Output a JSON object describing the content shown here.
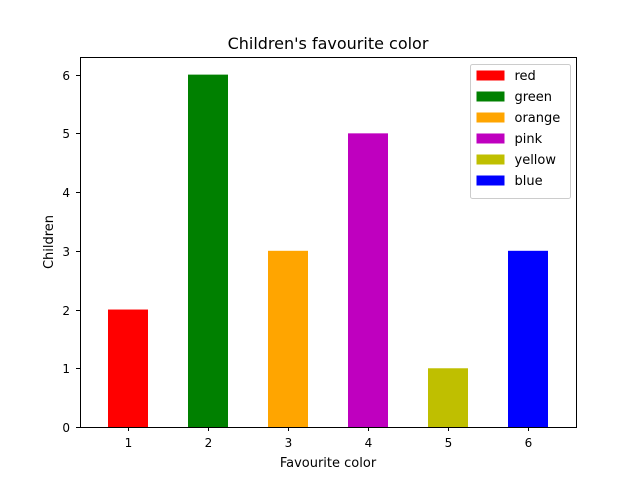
{
  "chart_data": {
    "type": "bar",
    "title": "Children's favourite color",
    "xlabel": "Favourite color",
    "ylabel": "Children",
    "categories": [
      "1",
      "2",
      "3",
      "4",
      "5",
      "6"
    ],
    "values": [
      2,
      6,
      3,
      5,
      1,
      3
    ],
    "colors": [
      "#ff0000",
      "#008000",
      "#ffa500",
      "#bf00bf",
      "#bfbf00",
      "#0000ff"
    ],
    "series_names": [
      "red",
      "green",
      "orange",
      "pink",
      "yellow",
      "blue"
    ],
    "ylim": [
      0,
      6.3
    ],
    "yticks": [
      "0",
      "1",
      "2",
      "3",
      "4",
      "5",
      "6"
    ],
    "grid": false,
    "legend_position": "top-right"
  }
}
